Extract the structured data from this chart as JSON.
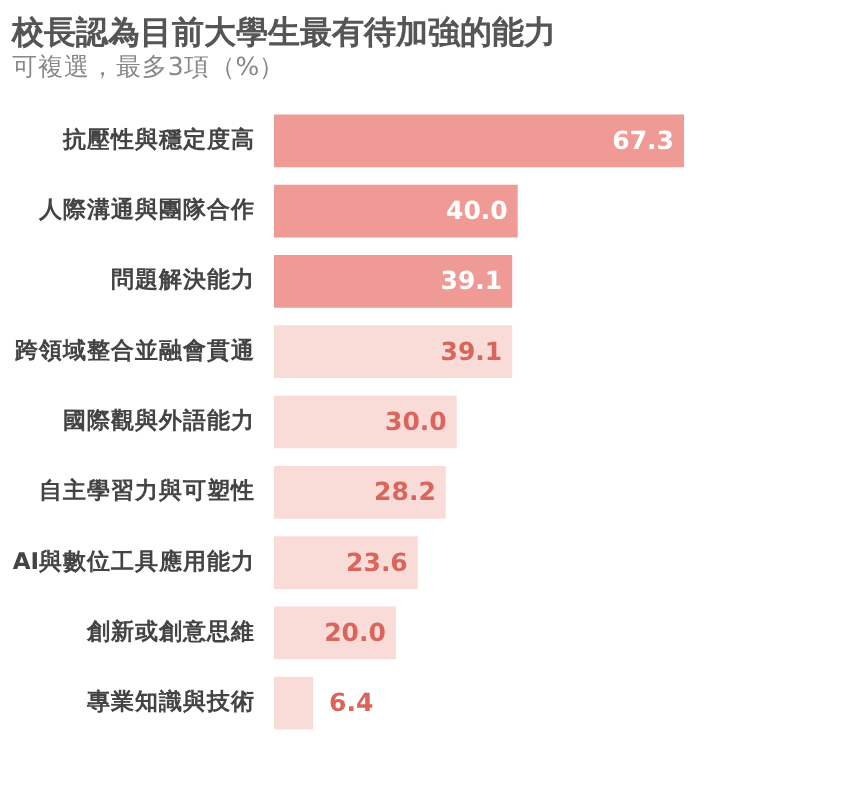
{
  "chart_data": {
    "type": "bar",
    "orientation": "horizontal",
    "title": "校長認為目前大學生最有待加強的能力",
    "subtitle": "可複選，最多3項（%）",
    "categories": [
      "抗壓性與穩定度高",
      "人際溝通與團隊合作",
      "問題解決能力",
      "跨領域整合並融會貫通",
      "國際觀與外語能力",
      "自主學習力與可塑性",
      "AI與數位工具應用能力",
      "創新或創意思維",
      "專業知識與技術"
    ],
    "values": [
      67.3,
      40.0,
      39.1,
      39.1,
      30.0,
      28.2,
      23.6,
      20.0,
      6.4
    ],
    "colors": [
      "#ef9a94",
      "#ef9a94",
      "#ef9a94",
      "#f9dcd7",
      "#f9dcd7",
      "#f9dcd7",
      "#f9dcd7",
      "#f9dcd7",
      "#f9dcd7"
    ],
    "value_labels": [
      "67.3",
      "40.0",
      "39.1",
      "39.1",
      "30.0",
      "28.2",
      "23.6",
      "20.0",
      "6.4"
    ],
    "grid": false
  }
}
